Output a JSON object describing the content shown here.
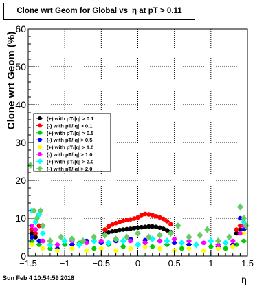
{
  "chart_data": {
    "type": "scatter",
    "title": "Clone wrt Geom for Global vs",
    "title_symbol": "η",
    "title_suffix": "at pT > 0.11",
    "xlabel": "η",
    "ylabel": "Clone wrt Geom (%)",
    "xlim": [
      -1.5,
      1.5
    ],
    "ylim": [
      0,
      60
    ],
    "x_ticks": [
      "-1.5",
      "-1",
      "-0.5",
      "0",
      "0.5",
      "1",
      "1.5"
    ],
    "y_ticks": [
      "0",
      "10",
      "20",
      "30",
      "40",
      "50",
      "60"
    ],
    "grid": true,
    "legend_position": "middle-left",
    "series": [
      {
        "name": "(+) with pT/|q| > 0.1",
        "color": "#000000",
        "points": [
          [
            -1.45,
            6
          ],
          [
            -1.4,
            5
          ],
          [
            -1.35,
            8
          ],
          [
            -1.3,
            4
          ],
          [
            -0.45,
            6
          ],
          [
            -0.4,
            6.3
          ],
          [
            -0.35,
            6.5
          ],
          [
            -0.3,
            6.7
          ],
          [
            -0.25,
            6.9
          ],
          [
            -0.2,
            7
          ],
          [
            -0.15,
            7.1
          ],
          [
            -0.1,
            7.2
          ],
          [
            -0.05,
            7.4
          ],
          [
            0.0,
            7.5
          ],
          [
            0.05,
            7.6
          ],
          [
            0.1,
            7.7
          ],
          [
            0.15,
            7.8
          ],
          [
            0.2,
            7.8
          ],
          [
            0.25,
            7.7
          ],
          [
            0.3,
            7.5
          ],
          [
            0.35,
            7.2
          ],
          [
            0.4,
            6.8
          ],
          [
            0.45,
            6.3
          ],
          [
            1.35,
            6
          ],
          [
            1.4,
            7
          ],
          [
            1.45,
            8
          ]
        ]
      },
      {
        "name": "(-) with pT/|q| > 0.1",
        "color": "#ff0000",
        "points": [
          [
            -1.45,
            7
          ],
          [
            -1.4,
            6
          ],
          [
            -1.35,
            8
          ],
          [
            -0.45,
            7
          ],
          [
            -0.4,
            7.8
          ],
          [
            -0.35,
            8.3
          ],
          [
            -0.3,
            8.7
          ],
          [
            -0.25,
            9
          ],
          [
            -0.2,
            9.3
          ],
          [
            -0.15,
            9.5
          ],
          [
            -0.1,
            9.7
          ],
          [
            -0.05,
            9.9
          ],
          [
            0.0,
            10.2
          ],
          [
            0.05,
            10.8
          ],
          [
            0.1,
            11.1
          ],
          [
            0.15,
            11
          ],
          [
            0.2,
            10.8
          ],
          [
            0.25,
            10.5
          ],
          [
            0.3,
            10.2
          ],
          [
            0.35,
            9.8
          ],
          [
            0.4,
            9.2
          ],
          [
            0.45,
            8.4
          ],
          [
            1.35,
            7
          ],
          [
            1.4,
            8
          ],
          [
            1.45,
            9
          ]
        ]
      },
      {
        "name": "(+) with pT/|q| > 0.5",
        "color": "#00cc00",
        "points": [
          [
            -1.45,
            4
          ],
          [
            -1.35,
            3
          ],
          [
            -1.2,
            2
          ],
          [
            -1.0,
            3
          ],
          [
            -0.8,
            3.5
          ],
          [
            -0.6,
            2
          ],
          [
            -0.4,
            3
          ],
          [
            -0.2,
            2.5
          ],
          [
            0.0,
            3
          ],
          [
            0.2,
            2.5
          ],
          [
            0.4,
            3
          ],
          [
            0.6,
            2
          ],
          [
            0.8,
            3
          ],
          [
            1.0,
            2.5
          ],
          [
            1.2,
            2
          ],
          [
            1.35,
            3
          ],
          [
            1.45,
            4
          ]
        ]
      },
      {
        "name": "(-) with pT/|q| > 0.5",
        "color": "#0000ff",
        "points": [
          [
            -1.45,
            5
          ],
          [
            -1.35,
            4
          ],
          [
            -1.1,
            2
          ],
          [
            -0.9,
            3
          ],
          [
            -0.7,
            4
          ],
          [
            -0.5,
            3.5
          ],
          [
            -0.3,
            4
          ],
          [
            -0.1,
            4.5
          ],
          [
            0.1,
            4.2
          ],
          [
            0.3,
            4
          ],
          [
            0.5,
            3.5
          ],
          [
            0.7,
            3
          ],
          [
            0.9,
            3.5
          ],
          [
            1.1,
            2.5
          ],
          [
            1.3,
            3
          ],
          [
            1.4,
            10
          ],
          [
            1.45,
            7
          ]
        ]
      },
      {
        "name": "(+) with pT/|q| > 1.0",
        "color": "#ffff00",
        "points": [
          [
            -1.45,
            3
          ],
          [
            -1.3,
            2
          ],
          [
            -1.1,
            1.5
          ],
          [
            -0.9,
            2
          ],
          [
            -0.7,
            1.5
          ],
          [
            -0.5,
            2
          ],
          [
            -0.3,
            1.5
          ],
          [
            -0.1,
            2
          ],
          [
            0.1,
            2.5
          ],
          [
            0.3,
            2
          ],
          [
            0.5,
            1.5
          ],
          [
            0.7,
            2
          ],
          [
            0.9,
            1.5
          ],
          [
            1.1,
            2
          ],
          [
            1.3,
            2.5
          ],
          [
            1.45,
            6
          ]
        ]
      },
      {
        "name": "(-) with pT/|q| > 1.0",
        "color": "#ff00ff",
        "points": [
          [
            -1.45,
            8
          ],
          [
            -1.4,
            7
          ],
          [
            -1.3,
            4
          ],
          [
            -1.1,
            3
          ],
          [
            -0.9,
            4
          ],
          [
            -0.7,
            3.5
          ],
          [
            -0.5,
            4
          ],
          [
            -0.3,
            4.5
          ],
          [
            -0.1,
            4
          ],
          [
            0.1,
            3.5
          ],
          [
            0.3,
            4
          ],
          [
            0.5,
            4.5
          ],
          [
            0.7,
            4
          ],
          [
            0.9,
            3.5
          ],
          [
            1.1,
            3
          ],
          [
            1.3,
            4
          ],
          [
            1.4,
            6
          ],
          [
            1.45,
            8
          ]
        ]
      },
      {
        "name": "(+) with pT/|q| > 2.0",
        "color": "#00ffff",
        "points": [
          [
            -1.45,
            12
          ],
          [
            -1.4,
            9
          ],
          [
            -1.35,
            11
          ],
          [
            -1.3,
            6
          ],
          [
            -1.2,
            3
          ],
          [
            -1.0,
            4
          ],
          [
            -0.8,
            3
          ],
          [
            -0.6,
            4
          ],
          [
            -0.4,
            3.5
          ],
          [
            -0.2,
            4
          ],
          [
            0.0,
            3
          ],
          [
            0.2,
            4.5
          ],
          [
            0.4,
            4
          ],
          [
            0.6,
            3.5
          ],
          [
            0.8,
            3
          ],
          [
            1.0,
            4
          ],
          [
            1.2,
            3.5
          ],
          [
            1.4,
            13
          ],
          [
            1.45,
            9
          ]
        ]
      },
      {
        "name": "(-) with pT/|q| > 2.0",
        "color": "#66cc66",
        "points": [
          [
            -1.47,
            24
          ],
          [
            -1.42,
            12
          ],
          [
            -1.38,
            10
          ],
          [
            -1.33,
            12
          ],
          [
            -1.3,
            8
          ],
          [
            -1.2,
            4
          ],
          [
            -1.05,
            5
          ],
          [
            -0.9,
            4.5
          ],
          [
            -0.75,
            4
          ],
          [
            -0.6,
            5
          ],
          [
            -0.45,
            5.5
          ],
          [
            -0.3,
            4.5
          ],
          [
            -0.15,
            5
          ],
          [
            0.0,
            6
          ],
          [
            0.15,
            5
          ],
          [
            0.3,
            5.5
          ],
          [
            0.45,
            6
          ],
          [
            0.55,
            8
          ],
          [
            0.7,
            5
          ],
          [
            0.85,
            5.5
          ],
          [
            0.95,
            7
          ],
          [
            1.1,
            4
          ],
          [
            1.25,
            5
          ],
          [
            1.4,
            13
          ],
          [
            1.45,
            10
          ],
          [
            1.48,
            8
          ]
        ]
      }
    ]
  },
  "footer": {
    "timestamp": "Sun Feb  4 10:54:59 2018"
  }
}
